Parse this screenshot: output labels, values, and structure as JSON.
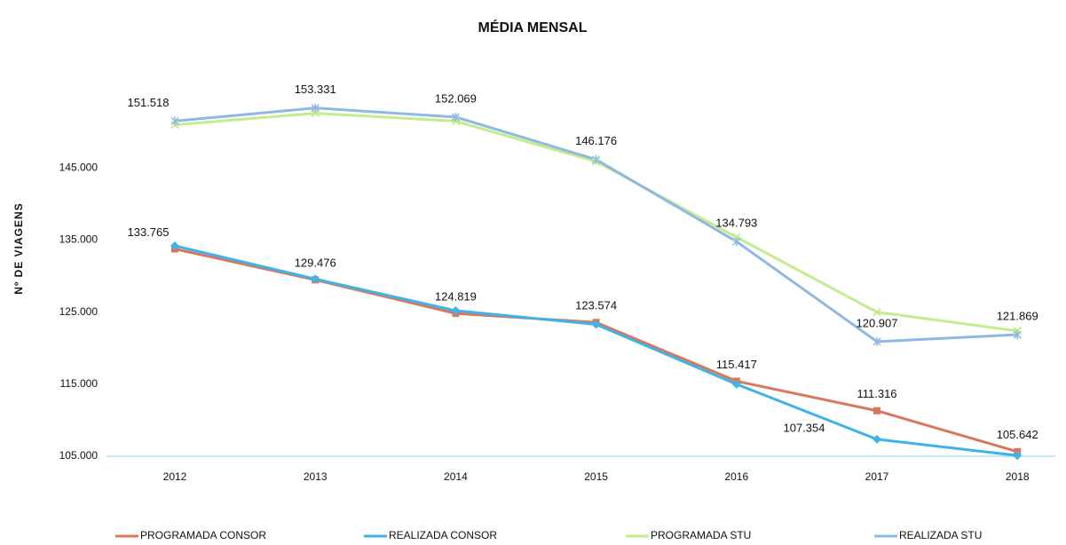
{
  "chart_data": {
    "type": "line",
    "title": "MÉDIA MENSAL",
    "y_label": "Nº DE VIAGENS",
    "categories": [
      "2012",
      "2013",
      "2014",
      "2015",
      "2016",
      "2017",
      "2018"
    ],
    "ylim": [
      105000,
      156000
    ],
    "yticks": [
      {
        "value": 105000,
        "label": "105.000"
      },
      {
        "value": 115000,
        "label": "115.000"
      },
      {
        "value": 125000,
        "label": "125.000"
      },
      {
        "value": 135000,
        "label": "135.000"
      },
      {
        "value": 145000,
        "label": "145.000"
      }
    ],
    "grid": false,
    "legend": "bottom",
    "series": [
      {
        "name": "PROGRAMADA CONSOR",
        "color": "#d9775a",
        "marker": "square",
        "values": [
          133765,
          129476,
          124819,
          123574,
          115417,
          111316,
          105642
        ],
        "value_labels": [
          "133.765",
          "129.476",
          "124.819",
          "123.574",
          "115.417",
          "111.316",
          "105.642"
        ]
      },
      {
        "name": "REALIZADA CONSOR",
        "color": "#3db3ea",
        "marker": "diamond",
        "values": [
          134200,
          129600,
          125200,
          123300,
          115000,
          107354,
          105100
        ],
        "value_labels": [
          null,
          null,
          null,
          null,
          null,
          "107.354",
          null
        ]
      },
      {
        "name": "PROGRAMADA STU",
        "color": "#c4ec8c",
        "marker": "cross",
        "values": [
          151000,
          152600,
          151500,
          145900,
          135400,
          125000,
          122400
        ]
      },
      {
        "name": "REALIZADA STU",
        "color": "#8fb8e4",
        "marker": "star",
        "values": [
          151518,
          153331,
          152069,
          146176,
          134793,
          120907,
          121869
        ],
        "value_labels": [
          "151.518",
          "153.331",
          "152.069",
          "146.176",
          "134.793",
          "120.907",
          "121.869"
        ]
      }
    ]
  }
}
